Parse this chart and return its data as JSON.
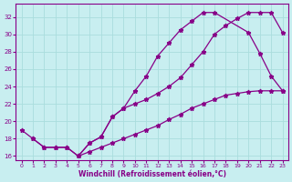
{
  "xlabel": "Windchill (Refroidissement éolien,°C)",
  "bg_color": "#c8eef0",
  "grid_color": "#aadddd",
  "line_color": "#880088",
  "xlim": [
    -0.5,
    23.5
  ],
  "ylim": [
    15.5,
    33.5
  ],
  "xticks": [
    0,
    1,
    2,
    3,
    4,
    5,
    6,
    7,
    8,
    9,
    10,
    11,
    12,
    13,
    14,
    15,
    16,
    17,
    18,
    19,
    20,
    21,
    22,
    23
  ],
  "yticks": [
    16,
    18,
    20,
    22,
    24,
    26,
    28,
    30,
    32
  ],
  "line1_x": [
    0,
    1,
    2,
    3,
    4,
    5,
    6,
    7,
    8,
    9,
    10,
    11,
    12,
    13,
    14,
    15,
    16,
    17,
    20,
    21,
    22,
    23
  ],
  "line1_y": [
    19,
    18,
    17,
    17,
    17,
    16,
    17.5,
    18.2,
    20.5,
    21.5,
    23.5,
    25.2,
    27.5,
    29.0,
    30.5,
    31.5,
    32.5,
    32.5,
    30.2,
    27.8,
    25.2,
    23.5
  ],
  "line2_x": [
    1,
    2,
    3,
    4,
    5,
    6,
    7,
    8,
    9,
    10,
    11,
    12,
    13,
    14,
    15,
    16,
    17,
    18,
    19,
    20,
    21,
    22,
    23
  ],
  "line2_y": [
    18,
    17,
    17,
    17,
    16,
    16.5,
    17.0,
    17.5,
    18.0,
    18.5,
    19.0,
    19.5,
    20.2,
    20.8,
    21.5,
    22.0,
    22.5,
    23.0,
    23.2,
    23.4,
    23.5,
    23.5,
    23.5
  ],
  "line3_x": [
    5,
    6,
    7,
    8,
    9,
    10,
    11,
    12,
    13,
    14,
    15,
    16,
    17,
    18,
    19,
    20,
    21,
    22,
    23
  ],
  "line3_y": [
    16,
    17.5,
    18.2,
    20.5,
    21.5,
    22.0,
    22.5,
    23.2,
    24.0,
    25.0,
    26.5,
    28.0,
    30.0,
    31.0,
    31.8,
    32.5,
    32.5,
    32.5,
    30.2
  ]
}
